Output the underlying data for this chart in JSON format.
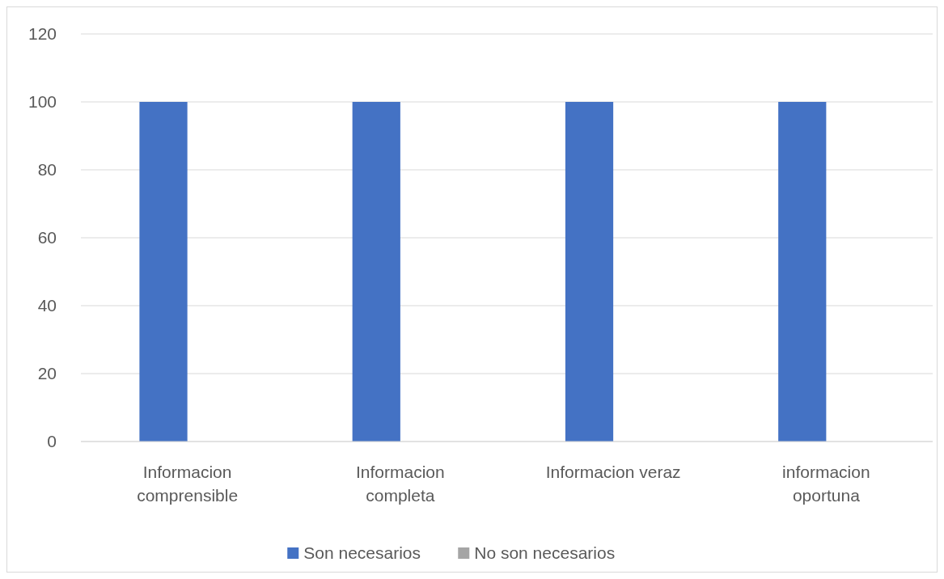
{
  "chart_data": {
    "type": "bar",
    "categories": [
      "Informacion comprensible",
      "Informacion completa",
      "Informacion veraz",
      "informacion oportuna"
    ],
    "series": [
      {
        "name": "Son necesarios",
        "color": "#4472c4",
        "values": [
          100,
          100,
          100,
          100
        ]
      },
      {
        "name": "No son necesarios",
        "color": "#a5a5a5",
        "values": [
          0,
          0,
          0,
          0
        ]
      }
    ],
    "ylim": [
      0,
      120
    ],
    "yticks": [
      0,
      20,
      40,
      60,
      80,
      100,
      120
    ],
    "grid": "y",
    "legend": "bottom"
  }
}
